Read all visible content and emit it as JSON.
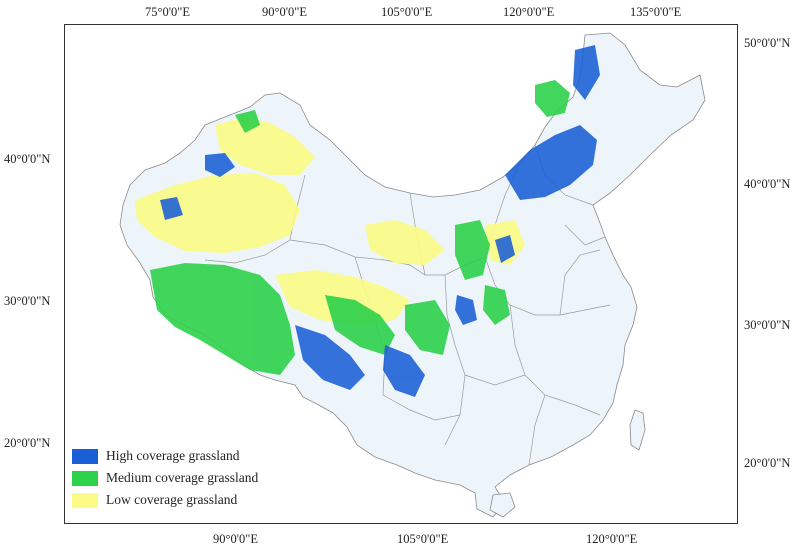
{
  "axes": {
    "top": [
      "75°0'0\"E",
      "90°0'0\"E",
      "105°0'0\"E",
      "120°0'0\"E",
      "135°0'0\"E"
    ],
    "bottom": [
      "90°0'0\"E",
      "105°0'0\"E",
      "120°0'0\"E"
    ],
    "left": [
      "40°0'0\"N",
      "30°0'0\"N",
      "20°0'0\"N"
    ],
    "right": [
      "50°0'0\"N",
      "40°0'0\"N",
      "30°0'0\"N",
      "20°0'0\"N"
    ]
  },
  "legend": {
    "high": {
      "label": "High coverage grassland",
      "color": "#1a5fd6"
    },
    "medium": {
      "label": "Medium coverage grassland",
      "color": "#2dd14a"
    },
    "low": {
      "label": "Low coverage grassland",
      "color": "#fbfb86"
    }
  },
  "colors": {
    "boundary": "#9a9a9a",
    "sparse": "#d3e6f3"
  }
}
